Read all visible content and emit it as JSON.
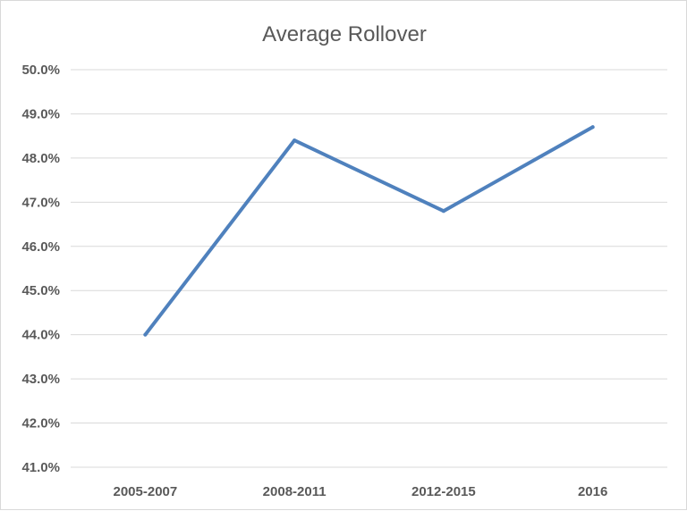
{
  "chart_data": {
    "type": "line",
    "title": "Average Rollover",
    "xlabel": "",
    "ylabel": "",
    "categories": [
      "2005-2007",
      "2008-2011",
      "2012-2015",
      "2016"
    ],
    "series": [
      {
        "values": [
          44.0,
          48.4,
          46.8,
          48.7
        ]
      }
    ],
    "ylim": [
      41.0,
      50.0
    ],
    "ytick_values": [
      41,
      42,
      43,
      44,
      45,
      46,
      47,
      48,
      49,
      50
    ],
    "ytick_labels": [
      "41.0%",
      "42.0%",
      "43.0%",
      "44.0%",
      "45.0%",
      "46.0%",
      "47.0%",
      "48.0%",
      "49.0%",
      "50.0%"
    ],
    "grid": true,
    "legend": "none",
    "colors": {
      "line": "#4f81bd",
      "grid": "#d9d9d9",
      "text": "#595959"
    }
  }
}
